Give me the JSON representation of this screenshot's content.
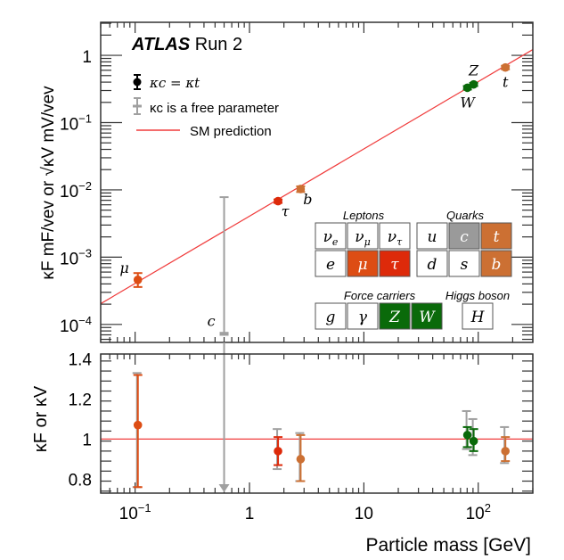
{
  "chart_data": [
    {
      "type": "scatter",
      "panel": "top",
      "title": "ATLAS Run 2",
      "title_bold": "ATLAS",
      "title_rest": "Run 2",
      "xlabel": "Particle mass [GeV]",
      "ylabel": "κF mF/vev or √κV mV/vev",
      "xscale": "log",
      "yscale": "log",
      "xlim": [
        0.05,
        300
      ],
      "ylim": [
        5.4e-05,
        3.1
      ],
      "xticks": [
        {
          "v": 0.1,
          "base": "10",
          "exp": "−1"
        },
        {
          "v": 1,
          "base": "1",
          "exp": ""
        },
        {
          "v": 10,
          "base": "10",
          "exp": ""
        },
        {
          "v": 100,
          "base": "10",
          "exp": "2"
        }
      ],
      "yticks": [
        {
          "v": 1,
          "base": "1",
          "exp": ""
        },
        {
          "v": 0.1,
          "base": "10",
          "exp": "−1"
        },
        {
          "v": 0.01,
          "base": "10",
          "exp": "−2"
        },
        {
          "v": 0.001,
          "base": "10",
          "exp": "−3"
        },
        {
          "v": 0.0001,
          "base": "10",
          "exp": "−4"
        }
      ],
      "legend": {
        "placement": "top-left",
        "entries": [
          {
            "label": "κc = κt",
            "style": "black-marker"
          },
          {
            "label": "κc is a free parameter",
            "style": "grey-marker"
          },
          {
            "label": "SM prediction",
            "style": "red-line"
          }
        ]
      },
      "sm_line": {
        "color": "#f03c3c",
        "slope_note": "y = m / 246 GeV"
      },
      "points": [
        {
          "name": "μ",
          "mass": 0.1057,
          "y": 0.00046,
          "ylo": 0.00036,
          "yhi": 0.00058,
          "color": "#dd4d14",
          "label_pos": "upper-left"
        },
        {
          "name": "τ",
          "mass": 1.777,
          "y": 0.0068,
          "ylo": 0.0064,
          "yhi": 0.0072,
          "color": "#dd2a0a",
          "label_pos": "lower-right"
        },
        {
          "name": "b",
          "mass": 2.8,
          "y": 0.0103,
          "ylo": 0.0093,
          "yhi": 0.0113,
          "color": "#cc7033",
          "label_pos": "lower-right"
        },
        {
          "name": "c",
          "mass": 0.6,
          "y": 7.4e-05,
          "ylo": 7e-05,
          "yhi": 0.0078,
          "color": "#a0a0a0",
          "label_pos": "upper-left",
          "free_param": true
        },
        {
          "name": "W",
          "mass": 80.4,
          "y": 0.33,
          "ylo": 0.31,
          "yhi": 0.35,
          "color": "#0a6a0a",
          "label_pos": "below"
        },
        {
          "name": "Z",
          "mass": 91.2,
          "y": 0.37,
          "ylo": 0.35,
          "yhi": 0.39,
          "color": "#0a6a0a",
          "label_pos": "above"
        },
        {
          "name": "t",
          "mass": 172.7,
          "y": 0.66,
          "ylo": 0.62,
          "yhi": 0.7,
          "color": "#cc7033",
          "label_pos": "below"
        }
      ]
    },
    {
      "type": "scatter",
      "panel": "bottom",
      "ylabel": "κF or κV",
      "xlabel": "Particle mass [GeV]",
      "xscale": "log",
      "yscale": "linear",
      "xlim": [
        0.05,
        300
      ],
      "ylim": [
        0.73,
        1.425
      ],
      "yticks": [
        {
          "v": 1.4,
          "label": "1.4"
        },
        {
          "v": 1.2,
          "label": "1.2"
        },
        {
          "v": 1.0,
          "label": "1"
        },
        {
          "v": 0.8,
          "label": "0.8"
        }
      ],
      "reference_line": 1.0,
      "points": [
        {
          "name": "μ",
          "mass": 0.1057,
          "y": 1.07,
          "ylo": 0.76,
          "yhi": 1.32,
          "grey_lo": 0.76,
          "grey_hi": 1.33,
          "color": "#dd4d14"
        },
        {
          "name": "τ",
          "mass": 1.777,
          "y": 0.94,
          "ylo": 0.87,
          "yhi": 1.01,
          "grey_lo": 0.85,
          "grey_hi": 1.05,
          "color": "#dd2a0a"
        },
        {
          "name": "b",
          "mass": 2.8,
          "y": 0.9,
          "ylo": 0.79,
          "yhi": 1.02,
          "grey_lo": 0.79,
          "grey_hi": 1.03,
          "color": "#cc7033"
        },
        {
          "name": "c",
          "mass": 0.6,
          "y": null,
          "arrow_down": true,
          "color": "#a0a0a0"
        },
        {
          "name": "W",
          "mass": 80.4,
          "y": 1.02,
          "ylo": 0.96,
          "yhi": 1.06,
          "grey_lo": 0.95,
          "grey_hi": 1.14,
          "color": "#0a6a0a"
        },
        {
          "name": "Z",
          "mass": 91.2,
          "y": 0.99,
          "ylo": 0.94,
          "yhi": 1.05,
          "grey_lo": 0.92,
          "grey_hi": 1.1,
          "color": "#0a6a0a"
        },
        {
          "name": "t",
          "mass": 172.7,
          "y": 0.94,
          "ylo": 0.89,
          "yhi": 1.01,
          "grey_lo": 0.88,
          "grey_hi": 1.06,
          "color": "#cc7033"
        }
      ]
    }
  ],
  "particle_table": {
    "groups": [
      {
        "title": "Leptons",
        "cells": [
          {
            "sym": "ν",
            "sub": "e",
            "fill": "#ffffff"
          },
          {
            "sym": "ν",
            "sub": "μ",
            "fill": "#ffffff"
          },
          {
            "sym": "ν",
            "sub": "τ",
            "fill": "#ffffff"
          },
          {
            "sym": "e",
            "sub": "",
            "fill": "#ffffff"
          },
          {
            "sym": "μ",
            "sub": "",
            "fill": "#dd4d14"
          },
          {
            "sym": "τ",
            "sub": "",
            "fill": "#dd2a0a"
          }
        ]
      },
      {
        "title": "Quarks",
        "cells": [
          {
            "sym": "u",
            "sub": "",
            "fill": "#ffffff"
          },
          {
            "sym": "c",
            "sub": "",
            "fill": "#9a9a9a"
          },
          {
            "sym": "t",
            "sub": "",
            "fill": "#cc7033"
          },
          {
            "sym": "d",
            "sub": "",
            "fill": "#ffffff"
          },
          {
            "sym": "s",
            "sub": "",
            "fill": "#ffffff"
          },
          {
            "sym": "b",
            "sub": "",
            "fill": "#cc7033"
          }
        ]
      },
      {
        "title": "Force carriers",
        "cells": [
          {
            "sym": "g",
            "sub": "",
            "fill": "#ffffff"
          },
          {
            "sym": "γ",
            "sub": "",
            "fill": "#ffffff"
          },
          {
            "sym": "Z",
            "sub": "",
            "fill": "#0a6a0a"
          },
          {
            "sym": "W",
            "sub": "",
            "fill": "#0a6a0a"
          }
        ]
      },
      {
        "title": "Higgs boson",
        "cells": [
          {
            "sym": "H",
            "sub": "",
            "fill": "#ffffff"
          }
        ]
      }
    ]
  },
  "colors": {
    "sm_line": "#f03c3c",
    "grey": "#a0a0a0",
    "frame": "#333333"
  }
}
